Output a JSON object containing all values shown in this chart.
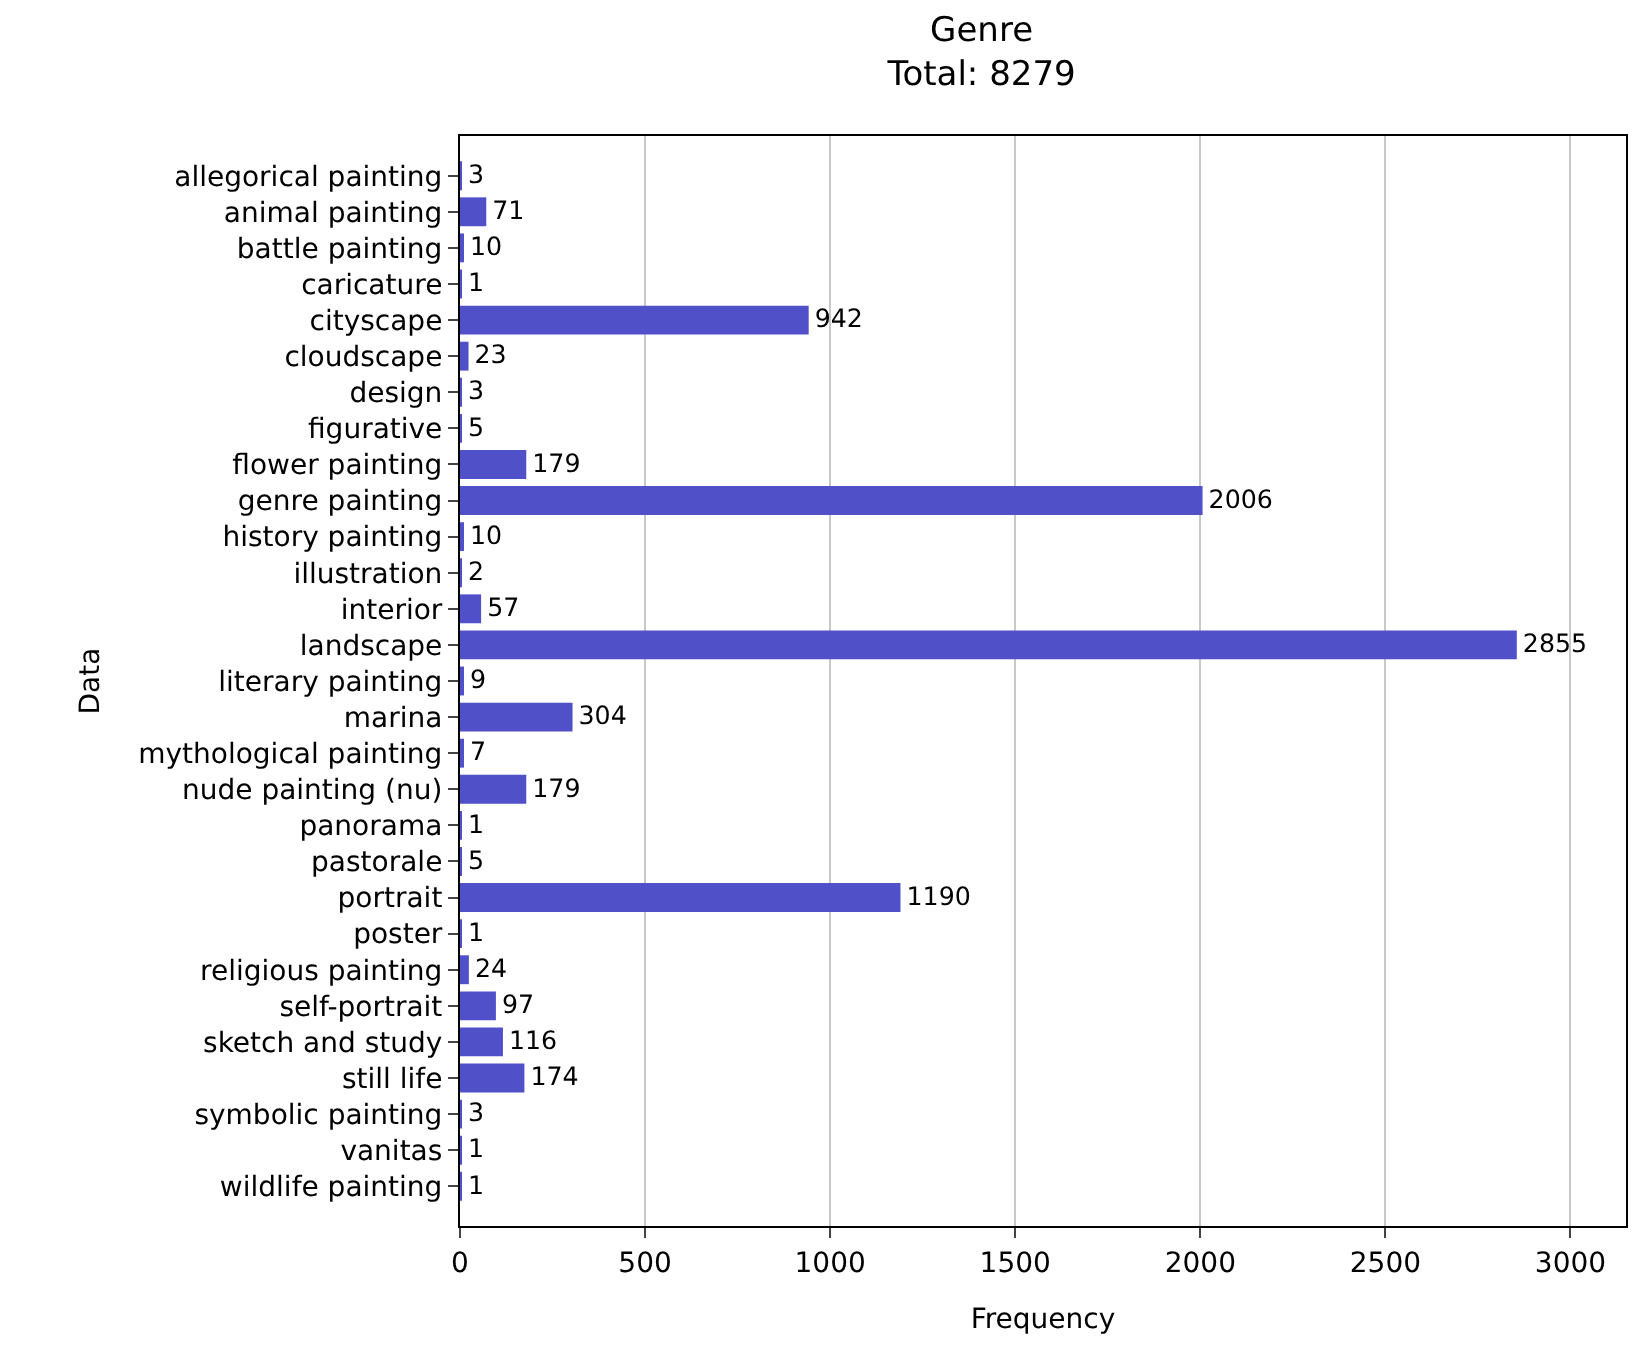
{
  "chart_data": {
    "type": "bar",
    "orientation": "horizontal",
    "title": "Genre\nTotal: 8279",
    "xlabel": "Frequency",
    "ylabel": "Data",
    "categories": [
      "allegorical painting",
      "animal painting",
      "battle painting",
      "caricature",
      "cityscape",
      "cloudscape",
      "design",
      "figurative",
      "flower painting",
      "genre painting",
      "history painting",
      "illustration",
      "interior",
      "landscape",
      "literary painting",
      "marina",
      "mythological painting",
      "nude painting (nu)",
      "panorama",
      "pastorale",
      "portrait",
      "poster",
      "religious painting",
      "self-portrait",
      "sketch and study",
      "still life",
      "symbolic painting",
      "vanitas",
      "wildlife painting"
    ],
    "values": [
      3,
      71,
      10,
      1,
      942,
      23,
      3,
      5,
      179,
      2006,
      10,
      2,
      57,
      2855,
      9,
      304,
      7,
      179,
      1,
      5,
      1190,
      1,
      24,
      97,
      116,
      174,
      3,
      1,
      1
    ],
    "color": "#5050c8",
    "xlim": [
      0,
      3150
    ],
    "xticks": [
      0,
      500,
      1000,
      1500,
      2000,
      2500,
      3000
    ],
    "grid": "x",
    "data_labels": true
  }
}
